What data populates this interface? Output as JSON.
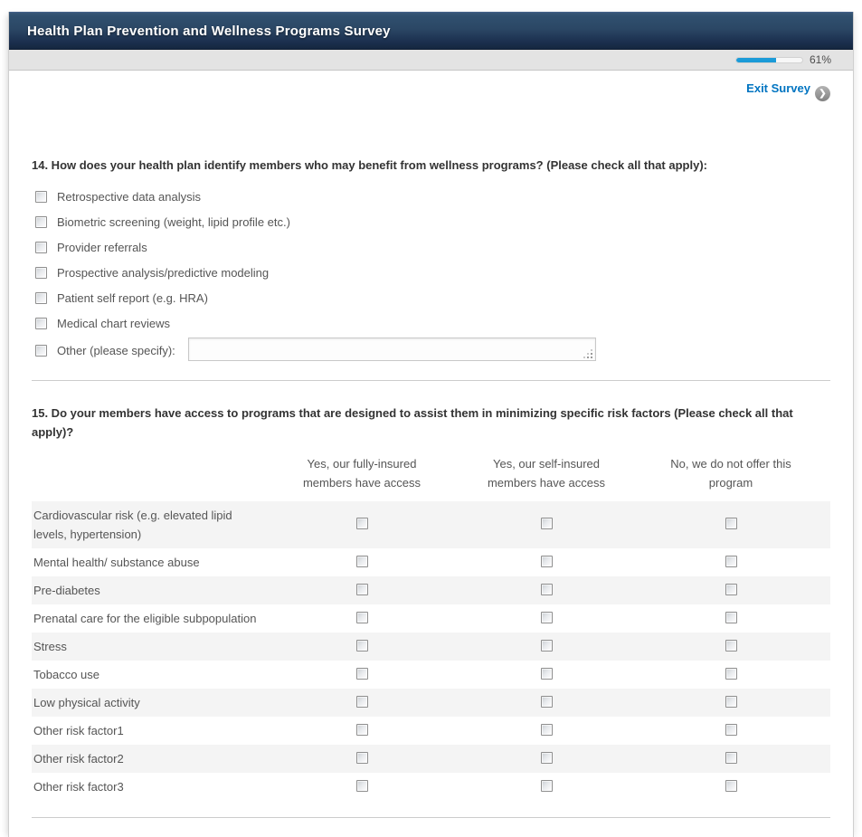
{
  "header": {
    "title": "Health Plan Prevention and Wellness Programs Survey"
  },
  "progress": {
    "percent": 61,
    "label": "61%"
  },
  "exit": {
    "label": "Exit Survey"
  },
  "question14": {
    "title": "14. How does your health plan identify members who may benefit from wellness programs? (Please check all that apply):",
    "options": [
      "Retrospective data analysis",
      "Biometric screening (weight, lipid profile etc.)",
      "Provider referrals",
      "Prospective analysis/predictive modeling",
      "Patient self report (e.g. HRA)",
      "Medical chart reviews"
    ],
    "other_label": "Other (please specify):",
    "other_value": ""
  },
  "question15": {
    "title": "15. Do your members have access to programs that are designed to assist them in minimizing specific risk factors (Please check all that apply)?",
    "columns": [
      "Yes, our fully-insured members have access",
      "Yes, our self-insured members have access",
      "No, we do not offer this program"
    ],
    "rows": [
      "Cardiovascular risk (e.g. elevated lipid levels, hypertension)",
      "Mental health/ substance abuse",
      "Pre-diabetes",
      "Prenatal care for the eligible subpopulation",
      "Stress",
      "Tobacco use",
      "Low physical activity",
      "Other risk factor1",
      "Other risk factor2",
      "Other risk factor3"
    ]
  },
  "colors": {
    "accent_blue": "#1b9bd8",
    "link_blue": "#0074c1",
    "header_navy_top": "#30506f",
    "header_navy_bottom": "#152740",
    "row_shade": "#f4f4f4"
  }
}
